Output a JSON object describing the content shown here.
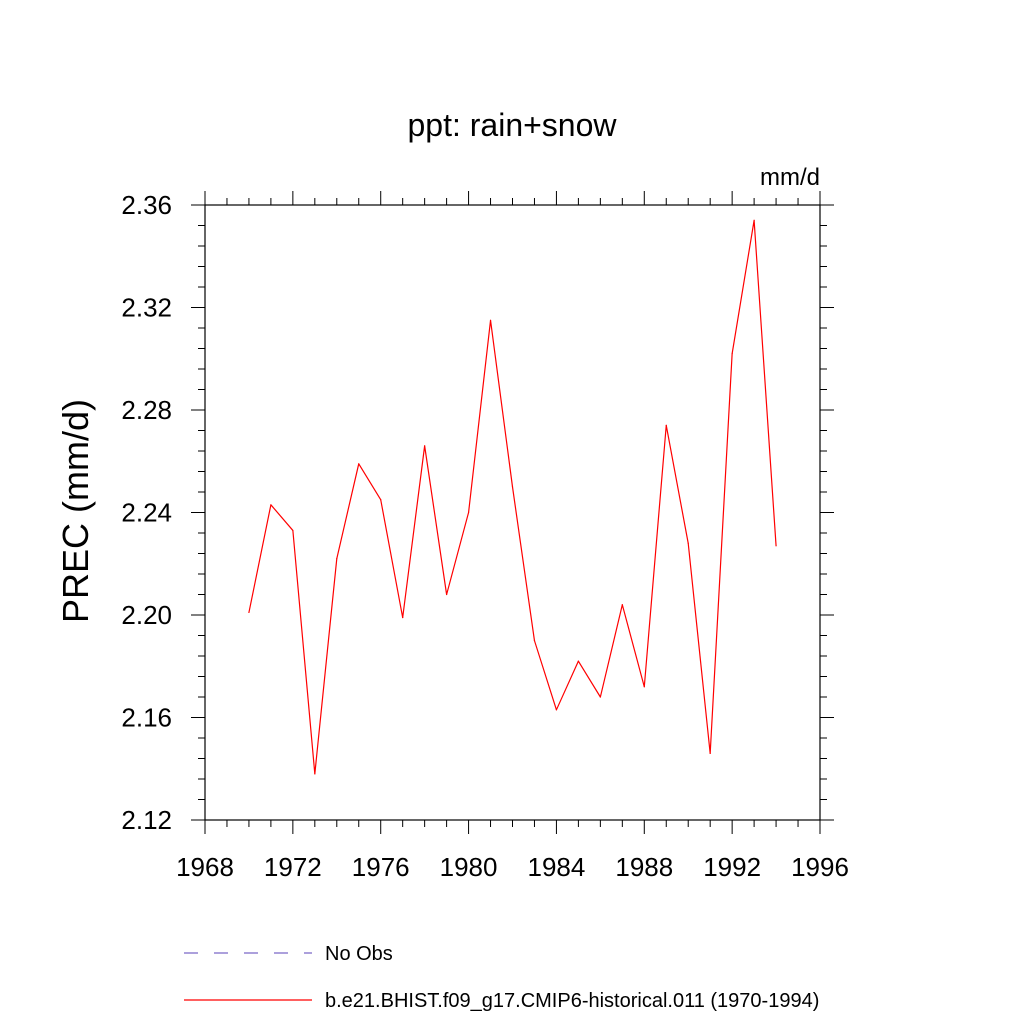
{
  "chart_data": {
    "type": "line",
    "title": "ppt: rain+snow",
    "units_label": "mm/d",
    "ylabel": "PREC  (mm/d)",
    "xlabel": "",
    "xlim": [
      1968,
      1996
    ],
    "ylim": [
      2.12,
      2.36
    ],
    "x_ticks": [
      1968,
      1972,
      1976,
      1980,
      1984,
      1988,
      1992,
      1996
    ],
    "x_tick_labels": [
      "1968",
      "1972",
      "1976",
      "1980",
      "1984",
      "1988",
      "1992",
      "1996"
    ],
    "y_ticks": [
      2.12,
      2.16,
      2.2,
      2.24,
      2.28,
      2.32,
      2.36
    ],
    "y_tick_labels": [
      "2.12",
      "2.16",
      "2.20",
      "2.24",
      "2.28",
      "2.32",
      "2.36"
    ],
    "grid": false,
    "legend_placement": "bottom",
    "series": [
      {
        "name": "b.e21.BHIST.f09_g17.CMIP6-historical.011 (1970-1994)",
        "color": "#ff0000",
        "style": "solid",
        "x": [
          1970,
          1971,
          1972,
          1973,
          1974,
          1975,
          1976,
          1977,
          1978,
          1979,
          1980,
          1981,
          1982,
          1983,
          1984,
          1985,
          1986,
          1987,
          1988,
          1989,
          1990,
          1991,
          1992,
          1993,
          1994
        ],
        "values": [
          2.201,
          2.243,
          2.233,
          2.138,
          2.222,
          2.259,
          2.245,
          2.199,
          2.266,
          2.208,
          2.24,
          2.315,
          2.25,
          2.19,
          2.163,
          2.182,
          2.168,
          2.204,
          2.172,
          2.274,
          2.228,
          2.146,
          2.302,
          2.354,
          2.227
        ]
      }
    ],
    "legend": [
      {
        "label": "No Obs",
        "color": "#7b68c8",
        "style": "dashed"
      },
      {
        "label": "b.e21.BHIST.f09_g17.CMIP6-historical.011 (1970-1994)",
        "color": "#ff0000",
        "style": "solid"
      }
    ]
  }
}
